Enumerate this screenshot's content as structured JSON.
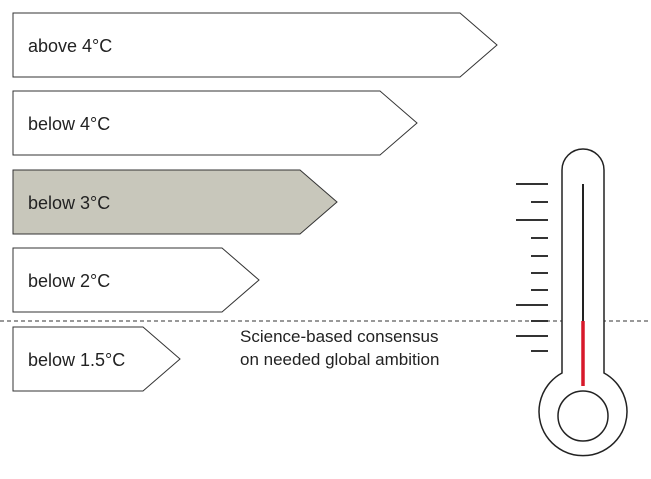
{
  "levels": [
    {
      "label": "above 4°C",
      "highlighted": false
    },
    {
      "label": "below 4°C",
      "highlighted": false
    },
    {
      "label": "below 3°C",
      "highlighted": true
    },
    {
      "label": "below 2°C",
      "highlighted": false
    },
    {
      "label": "below 1.5°C",
      "highlighted": false
    }
  ],
  "consensus_note": {
    "line1": "Science-based consensus",
    "line2": "on needed global ambition"
  },
  "thermometer": {
    "icon": "thermometer-icon",
    "fill_color": "#d7192a",
    "mercury_level": "at the consensus line"
  },
  "colors": {
    "highlight_fill": "#c8c7bb",
    "outline": "#333333",
    "mercury": "#d7192a"
  }
}
